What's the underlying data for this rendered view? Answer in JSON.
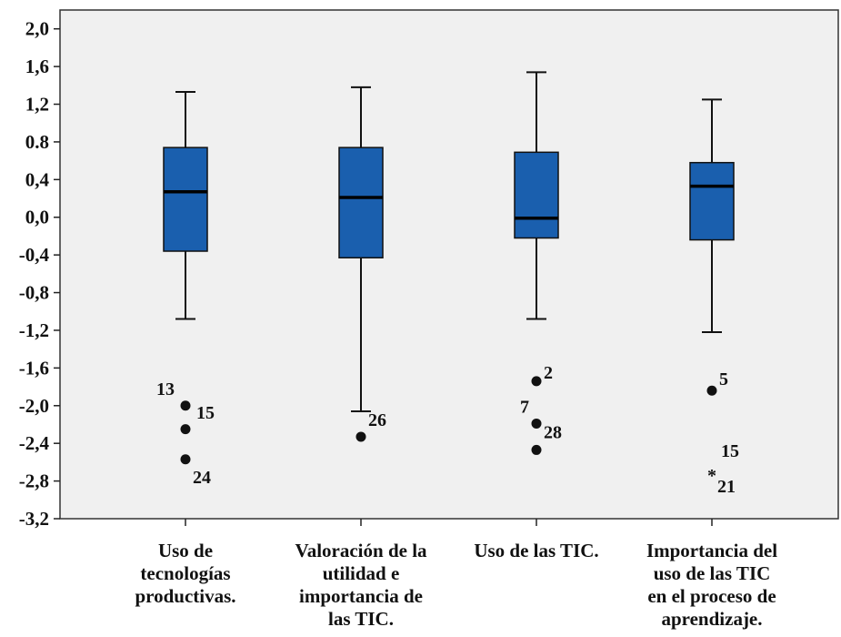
{
  "chart_data": {
    "type": "boxplot",
    "title": "",
    "xlabel": "",
    "ylabel": "",
    "ylim": [
      -3.2,
      2.2
    ],
    "y_ticks": [
      "2,0",
      "1,6",
      "1,2",
      "0.8",
      "0,4",
      "0,0",
      "-0,4",
      "-0,8",
      "-1,2",
      "-1,6",
      "-2,0",
      "-2,4",
      "-2,8",
      "-3,2"
    ],
    "y_tick_values": [
      2.0,
      1.6,
      1.2,
      0.8,
      0.4,
      0.0,
      -0.4,
      -0.8,
      -1.2,
      -1.6,
      -2.0,
      -2.4,
      -2.8,
      -3.2
    ],
    "grid": false,
    "box_color": "#1a5fae",
    "plot_background": "#f0f0f0",
    "categories": [
      {
        "label_lines": [
          "Uso de",
          "tecnologías",
          "productivas."
        ],
        "whisker_low": -1.08,
        "q1": -0.36,
        "median": 0.27,
        "q3": 0.74,
        "whisker_high": 1.33,
        "outliers": [
          {
            "value": -2.0,
            "marker": "circle"
          },
          {
            "value": -2.25,
            "marker": "circle"
          },
          {
            "value": -2.57,
            "marker": "circle"
          }
        ],
        "outlier_labels": [
          "13",
          "15",
          "24"
        ]
      },
      {
        "label_lines": [
          "Valoración de la",
          "utilidad e",
          "importancia de",
          "las TIC."
        ],
        "whisker_low": -2.06,
        "q1": -0.43,
        "median": 0.21,
        "q3": 0.74,
        "whisker_high": 1.38,
        "outliers": [
          {
            "value": -2.33,
            "marker": "circle"
          }
        ],
        "outlier_labels": [
          "26"
        ]
      },
      {
        "label_lines": [
          "Uso de las TIC."
        ],
        "whisker_low": -1.08,
        "q1": -0.22,
        "median": -0.01,
        "q3": 0.69,
        "whisker_high": 1.54,
        "outliers": [
          {
            "value": -1.74,
            "marker": "circle"
          },
          {
            "value": -2.19,
            "marker": "circle"
          },
          {
            "value": -2.47,
            "marker": "circle"
          }
        ],
        "outlier_labels": [
          "2",
          "7",
          "28"
        ]
      },
      {
        "label_lines": [
          "Importancia del",
          "uso de las TIC",
          "en el proceso de",
          "aprendizaje."
        ],
        "whisker_low": -1.22,
        "q1": -0.24,
        "median": 0.33,
        "q3": 0.58,
        "whisker_high": 1.25,
        "outliers": [
          {
            "value": -1.84,
            "marker": "circle"
          },
          {
            "value": -2.69,
            "marker": "star"
          }
        ],
        "outlier_labels": [
          "5",
          "15",
          "21"
        ]
      }
    ]
  }
}
